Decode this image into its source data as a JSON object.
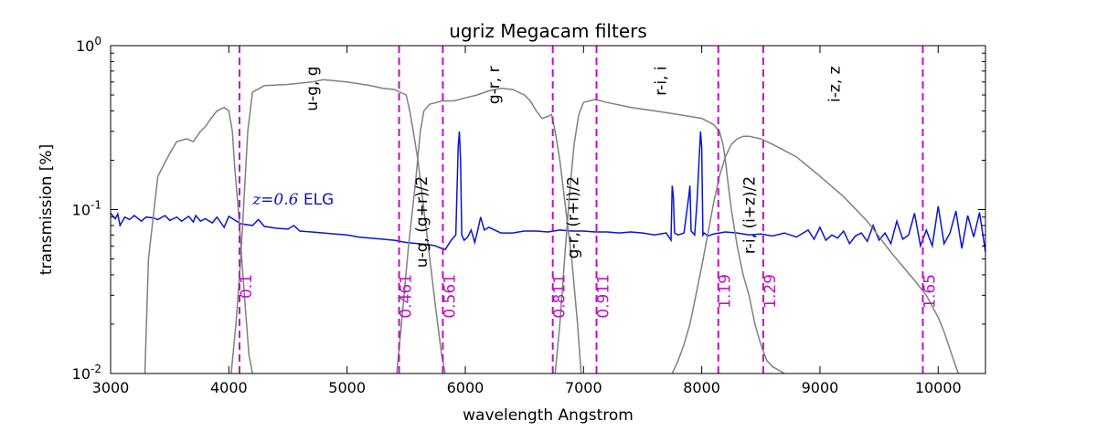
{
  "chart_data": {
    "type": "line",
    "title": "ugriz Megacam filters",
    "xlabel": "wavelength Angstrom",
    "ylabel": "transmission [%]",
    "xlim": [
      3000,
      10400
    ],
    "ylim": [
      0.01,
      1.0
    ],
    "yscale": "log",
    "x_ticks": [
      3000,
      4000,
      5000,
      6000,
      7000,
      8000,
      9000,
      10000
    ],
    "y_ticks": [
      {
        "value": 0.01,
        "base": "10",
        "exp": "-2"
      },
      {
        "value": 0.1,
        "base": "10",
        "exp": "-1"
      },
      {
        "value": 1.0,
        "base": "10",
        "exp": "0"
      }
    ],
    "colors": {
      "filter": "#808080",
      "elg": "#0a14d2",
      "redshift": "#c010c0"
    },
    "filter_curves": [
      {
        "name": "u",
        "x": [
          3290,
          3320,
          3400,
          3500,
          3560,
          3640,
          3700,
          3760,
          3800,
          3850,
          3900,
          3960,
          4000,
          4030,
          4050,
          4080,
          4110,
          4140,
          4170,
          4200
        ],
        "y": [
          0.01,
          0.05,
          0.16,
          0.22,
          0.26,
          0.27,
          0.26,
          0.3,
          0.32,
          0.36,
          0.4,
          0.42,
          0.4,
          0.3,
          0.18,
          0.1,
          0.05,
          0.025,
          0.013,
          0.01
        ]
      },
      {
        "name": "g",
        "x": [
          4020,
          4060,
          4100,
          4130,
          4160,
          4200,
          4300,
          4500,
          4700,
          4800,
          5000,
          5200,
          5300,
          5400,
          5450,
          5500,
          5530,
          5560,
          5600,
          5650,
          5700,
          5750,
          5800,
          5830
        ],
        "y": [
          0.01,
          0.02,
          0.05,
          0.12,
          0.3,
          0.52,
          0.57,
          0.58,
          0.6,
          0.62,
          0.6,
          0.57,
          0.55,
          0.54,
          0.52,
          0.5,
          0.4,
          0.3,
          0.2,
          0.1,
          0.05,
          0.025,
          0.013,
          0.01
        ]
      },
      {
        "name": "r",
        "x": [
          5420,
          5460,
          5520,
          5580,
          5620,
          5650,
          5700,
          5760,
          5800,
          5900,
          6000,
          6100,
          6200,
          6300,
          6400,
          6500,
          6550,
          6600,
          6650,
          6700,
          6730,
          6760,
          6800,
          6850,
          6900,
          6950,
          6980
        ],
        "y": [
          0.01,
          0.02,
          0.06,
          0.15,
          0.3,
          0.4,
          0.44,
          0.45,
          0.46,
          0.46,
          0.48,
          0.5,
          0.53,
          0.55,
          0.54,
          0.5,
          0.46,
          0.4,
          0.36,
          0.37,
          0.38,
          0.3,
          0.2,
          0.1,
          0.05,
          0.02,
          0.01
        ]
      },
      {
        "name": "i",
        "x": [
          6760,
          6800,
          6840,
          6880,
          6920,
          6960,
          7000,
          7050,
          7100,
          7200,
          7400,
          7600,
          7800,
          8000,
          8100,
          8150,
          8180,
          8200,
          8220,
          8250,
          8300,
          8350,
          8400,
          8450,
          8500,
          8550,
          8600,
          8650,
          8700
        ],
        "y": [
          0.01,
          0.02,
          0.05,
          0.12,
          0.25,
          0.38,
          0.45,
          0.46,
          0.47,
          0.45,
          0.42,
          0.4,
          0.38,
          0.36,
          0.33,
          0.3,
          0.25,
          0.2,
          0.15,
          0.1,
          0.06,
          0.04,
          0.03,
          0.02,
          0.015,
          0.012,
          0.011,
          0.0105,
          0.01
        ]
      },
      {
        "name": "z",
        "x": [
          7750,
          7800,
          7850,
          7900,
          7950,
          8000,
          8050,
          8100,
          8150,
          8200,
          8250,
          8300,
          8350,
          8400,
          8500,
          8600,
          8800,
          9000,
          9200,
          9400,
          9600,
          9800,
          9900,
          10000,
          10050,
          10100,
          10150,
          10170
        ],
        "y": [
          0.01,
          0.012,
          0.015,
          0.02,
          0.03,
          0.045,
          0.07,
          0.11,
          0.16,
          0.21,
          0.25,
          0.27,
          0.28,
          0.28,
          0.27,
          0.25,
          0.21,
          0.16,
          0.12,
          0.085,
          0.055,
          0.037,
          0.03,
          0.022,
          0.018,
          0.014,
          0.011,
          0.01
        ]
      }
    ],
    "elg_spectrum": {
      "label_math": "z=0.6",
      "label_text": "ELG",
      "x": [
        3000,
        3040,
        3060,
        3080,
        3120,
        3160,
        3200,
        3260,
        3300,
        3360,
        3400,
        3460,
        3500,
        3560,
        3600,
        3660,
        3700,
        3720,
        3760,
        3800,
        3860,
        3900,
        3960,
        4000,
        4100,
        4200,
        4250,
        4300,
        4400,
        4500,
        4550,
        4600,
        4700,
        4800,
        4900,
        5000,
        5100,
        5200,
        5300,
        5400,
        5500,
        5600,
        5700,
        5750,
        5800,
        5830,
        5880,
        5920,
        5940,
        5950,
        5960,
        5970,
        5990,
        6020,
        6050,
        6080,
        6100,
        6130,
        6160,
        6200,
        6300,
        6400,
        6500,
        6600,
        6700,
        6800,
        6900,
        7000,
        7100,
        7200,
        7300,
        7400,
        7500,
        7600,
        7700,
        7740,
        7750,
        7760,
        7770,
        7800,
        7850,
        7890,
        7900,
        7910,
        7940,
        7960,
        7990,
        8000,
        8010,
        8020,
        8050,
        8100,
        8200,
        8300,
        8400,
        8500,
        8600,
        8700,
        8800,
        8900,
        8950,
        9000,
        9050,
        9100,
        9150,
        9200,
        9250,
        9300,
        9350,
        9400,
        9450,
        9500,
        9550,
        9600,
        9650,
        9700,
        9750,
        9800,
        9850,
        9900,
        9950,
        10000,
        10050,
        10100,
        10150,
        10200,
        10250,
        10300,
        10350,
        10400
      ],
      "y": [
        0.095,
        0.088,
        0.094,
        0.08,
        0.09,
        0.087,
        0.092,
        0.085,
        0.09,
        0.089,
        0.087,
        0.092,
        0.086,
        0.09,
        0.085,
        0.091,
        0.084,
        0.092,
        0.085,
        0.088,
        0.083,
        0.09,
        0.078,
        0.091,
        0.082,
        0.08,
        0.087,
        0.079,
        0.077,
        0.076,
        0.08,
        0.074,
        0.073,
        0.072,
        0.071,
        0.07,
        0.068,
        0.067,
        0.066,
        0.065,
        0.063,
        0.062,
        0.061,
        0.06,
        0.058,
        0.057,
        0.065,
        0.07,
        0.24,
        0.3,
        0.2,
        0.07,
        0.065,
        0.068,
        0.075,
        0.063,
        0.072,
        0.09,
        0.075,
        0.078,
        0.072,
        0.072,
        0.074,
        0.074,
        0.073,
        0.075,
        0.074,
        0.074,
        0.073,
        0.073,
        0.072,
        0.073,
        0.072,
        0.07,
        0.072,
        0.065,
        0.14,
        0.12,
        0.072,
        0.07,
        0.072,
        0.12,
        0.14,
        0.074,
        0.07,
        0.11,
        0.3,
        0.24,
        0.07,
        0.072,
        0.069,
        0.071,
        0.073,
        0.072,
        0.07,
        0.071,
        0.069,
        0.072,
        0.068,
        0.075,
        0.066,
        0.078,
        0.065,
        0.07,
        0.067,
        0.074,
        0.062,
        0.069,
        0.072,
        0.064,
        0.08,
        0.065,
        0.072,
        0.062,
        0.085,
        0.066,
        0.07,
        0.095,
        0.06,
        0.075,
        0.06,
        0.105,
        0.062,
        0.072,
        0.098,
        0.058,
        0.092,
        0.068,
        0.096,
        0.055
      ]
    },
    "redshift_lines": [
      {
        "x": 4090,
        "label": "0.1"
      },
      {
        "x": 5440,
        "label": "0.461"
      },
      {
        "x": 5810,
        "label": "0.561"
      },
      {
        "x": 6740,
        "label": "0.811"
      },
      {
        "x": 7110,
        "label": "0.911"
      },
      {
        "x": 8140,
        "label": "1.19"
      },
      {
        "x": 8520,
        "label": "1.29"
      },
      {
        "x": 9870,
        "label": "1.65"
      }
    ],
    "annotations": [
      {
        "text": "u-g, g",
        "x": 4700,
        "y": 0.75
      },
      {
        "text": "u-g, (g+r)/2",
        "x": 5630,
        "y": 0.16
      },
      {
        "text": "g-r, r",
        "x": 6240,
        "y": 0.75
      },
      {
        "text": "g-r, (r+i)/2",
        "x": 6910,
        "y": 0.16
      },
      {
        "text": "r-i, i",
        "x": 7650,
        "y": 0.75
      },
      {
        "text": "r-i, (i+z)/2",
        "x": 8400,
        "y": 0.16
      },
      {
        "text": "i-z, z",
        "x": 9120,
        "y": 0.75
      }
    ]
  }
}
